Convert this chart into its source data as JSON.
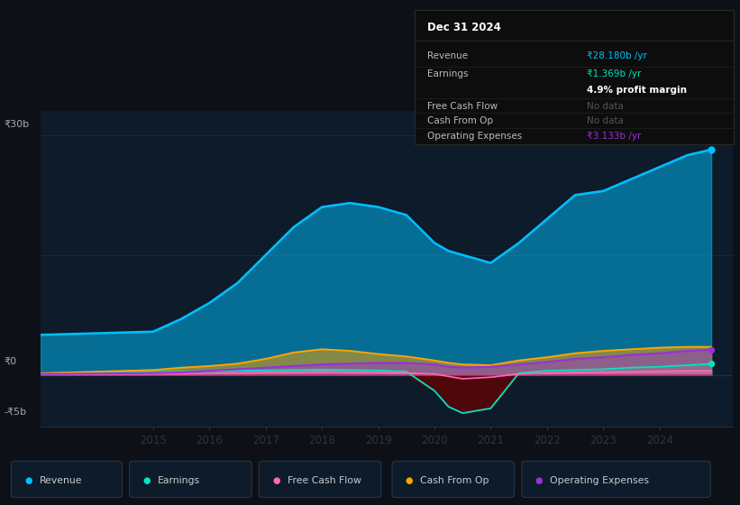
{
  "bg_color": "#0d1117",
  "plot_bg_color": "#0d1b2a",
  "years": [
    2013.0,
    2013.5,
    2014.0,
    2014.5,
    2015.0,
    2015.5,
    2016.0,
    2016.5,
    2017.0,
    2017.5,
    2018.0,
    2018.5,
    2019.0,
    2019.5,
    2020.0,
    2020.25,
    2020.5,
    2021.0,
    2021.5,
    2022.0,
    2022.5,
    2023.0,
    2023.5,
    2024.0,
    2024.5,
    2024.92
  ],
  "revenue": [
    5.0,
    5.1,
    5.2,
    5.3,
    5.4,
    7.0,
    9.0,
    11.5,
    15.0,
    18.5,
    21.0,
    21.5,
    21.0,
    20.0,
    16.5,
    15.5,
    15.0,
    14.0,
    16.5,
    19.5,
    22.5,
    23.0,
    24.5,
    26.0,
    27.5,
    28.18
  ],
  "earnings": [
    0.15,
    0.2,
    0.25,
    0.3,
    0.35,
    0.4,
    0.45,
    0.5,
    0.55,
    0.6,
    0.65,
    0.6,
    0.55,
    0.4,
    -2.0,
    -4.0,
    -4.8,
    -4.2,
    0.2,
    0.5,
    0.6,
    0.7,
    0.9,
    1.0,
    1.2,
    1.369
  ],
  "free_cash_flow": [
    0.05,
    0.06,
    0.07,
    0.08,
    0.1,
    0.12,
    0.15,
    0.2,
    0.3,
    0.35,
    0.4,
    0.35,
    0.3,
    0.2,
    0.1,
    -0.2,
    -0.5,
    -0.3,
    0.1,
    0.2,
    0.3,
    0.35,
    0.4,
    0.45,
    0.5,
    0.5
  ],
  "cash_from_op": [
    0.2,
    0.3,
    0.4,
    0.5,
    0.6,
    0.9,
    1.1,
    1.4,
    2.0,
    2.8,
    3.2,
    3.0,
    2.6,
    2.3,
    1.8,
    1.5,
    1.3,
    1.2,
    1.8,
    2.2,
    2.7,
    3.0,
    3.2,
    3.4,
    3.5,
    3.5
  ],
  "op_expenses": [
    0.1,
    0.12,
    0.15,
    0.18,
    0.22,
    0.3,
    0.5,
    0.7,
    0.9,
    1.1,
    1.3,
    1.4,
    1.5,
    1.5,
    1.3,
    1.0,
    0.9,
    1.0,
    1.3,
    1.6,
    2.0,
    2.2,
    2.5,
    2.7,
    3.0,
    3.133
  ],
  "revenue_color": "#00bfff",
  "earnings_color": "#00e5c0",
  "free_cash_flow_color": "#ff69b4",
  "cash_from_op_color": "#ffa500",
  "op_expenses_color": "#9b30d9",
  "ylim": [
    -6.5,
    33
  ],
  "xlim": [
    2013.0,
    2025.3
  ],
  "xtick_positions": [
    2015,
    2016,
    2017,
    2018,
    2019,
    2020,
    2021,
    2022,
    2023,
    2024
  ],
  "legend_items": [
    "Revenue",
    "Earnings",
    "Free Cash Flow",
    "Cash From Op",
    "Operating Expenses"
  ],
  "legend_colors": [
    "#00bfff",
    "#00e5c0",
    "#ff69b4",
    "#ffa500",
    "#9b30d9"
  ],
  "info_box": {
    "date": "Dec 31 2024",
    "revenue_val": "₹28.180b /yr",
    "earnings_val": "₹1.369b /yr",
    "profit_margin": "4.9% profit margin",
    "free_cash_flow": "No data",
    "cash_from_op": "No data",
    "op_expenses": "₹3.133b /yr"
  }
}
